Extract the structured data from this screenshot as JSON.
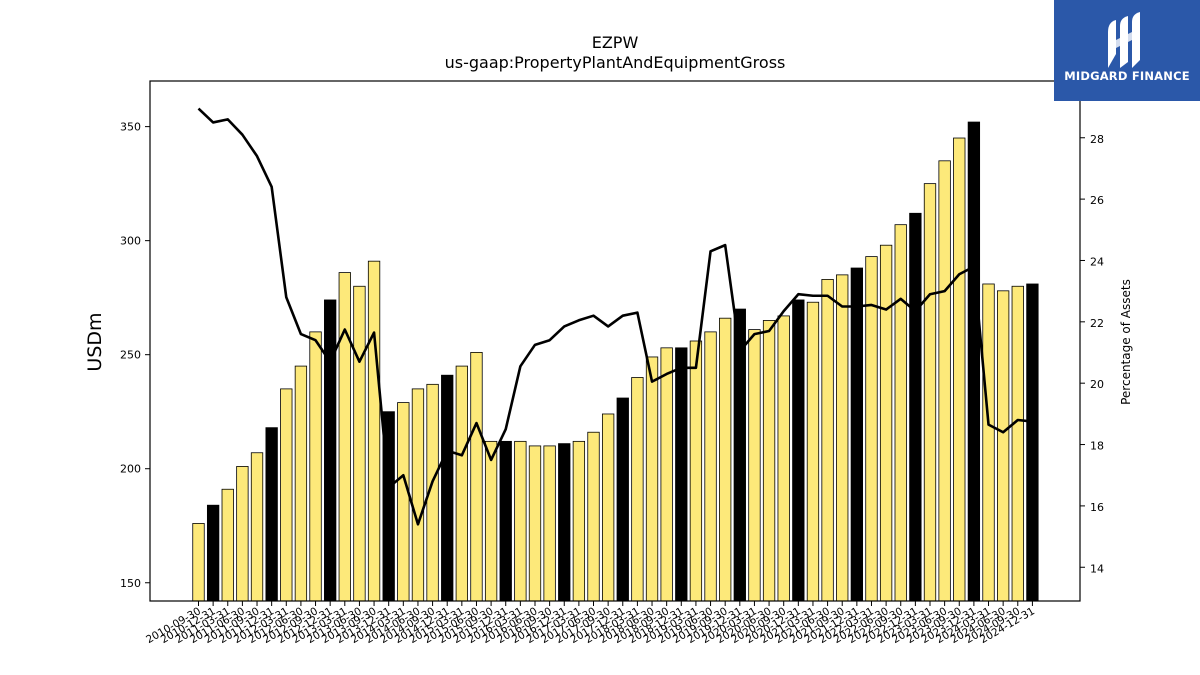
{
  "logo": {
    "text": "MIDGARD FINANCE"
  },
  "chart_data": {
    "type": "bar",
    "title": "EZPW",
    "subtitle": "us-gaap:PropertyPlantAndEquipmentGross",
    "ylabel": "USDm",
    "y2label": "Percentage of Assets",
    "ylim": [
      142,
      370
    ],
    "y2lim": [
      12.9,
      29.85
    ],
    "yticks": [
      150,
      200,
      250,
      300,
      350
    ],
    "y2ticks": [
      14,
      16,
      18,
      20,
      22,
      24,
      26,
      28
    ],
    "bar_fill": "#fde97a",
    "bar_fill_annual": "#000000",
    "line_color": "#000000",
    "categories": [
      "2010-09-30",
      "2010-12-31",
      "2011-03-31",
      "2011-06-30",
      "2011-09-30",
      "2011-12-31",
      "2012-03-31",
      "2012-06-30",
      "2012-09-30",
      "2012-12-31",
      "2013-03-31",
      "2013-06-30",
      "2013-09-30",
      "2013-12-31",
      "2014-03-31",
      "2014-06-30",
      "2014-09-30",
      "2014-12-31",
      "2015-03-31",
      "2015-06-30",
      "2015-09-30",
      "2015-12-31",
      "2016-03-31",
      "2016-06-30",
      "2016-09-30",
      "2016-12-31",
      "2017-03-31",
      "2017-06-30",
      "2017-09-30",
      "2017-12-31",
      "2018-03-31",
      "2018-06-30",
      "2018-09-30",
      "2018-12-31",
      "2019-03-31",
      "2019-06-30",
      "2019-09-30",
      "2019-12-31",
      "2020-03-31",
      "2020-06-30",
      "2020-09-30",
      "2020-12-31",
      "2021-03-31",
      "2021-06-30",
      "2021-09-30",
      "2021-12-31",
      "2022-03-31",
      "2022-06-30",
      "2022-09-30",
      "2022-12-31",
      "2023-03-31",
      "2023-06-30",
      "2023-09-30",
      "2023-12-31",
      "2024-03-31",
      "2024-06-30",
      "2024-09-30",
      "2024-12-31"
    ],
    "xtick_labels": [
      "2010-09-30",
      "2010-12-31",
      "2011-03-31",
      "2011-06-30",
      "2011-09-30",
      "2011-12-31",
      "2012-03-31",
      "2012-06-30",
      "2012-09-30",
      "2012-12-31",
      "2013-03-31",
      "2013-06-30",
      "2013-09-30",
      "2013-12-31",
      "2014-03-31",
      "2014-06-30",
      "2014-09-30",
      "2014-12-31",
      "2015-03-31",
      "2015-06-30",
      "2015-09-30",
      "2015-12-31",
      "2016-03-31",
      "2016-06-30",
      "2016-09-30",
      "2016-12-31",
      "2017-03-31",
      "2017-06-30",
      "2017-09-30",
      "2017-12-31",
      "2018-03-31",
      "2018-06-30",
      "2018-09-30",
      "2018-12-31",
      "2019-03-31",
      "2019-06-30",
      "2019-09-30",
      "2019-12-31",
      "2020-03-31",
      "2020-06-30",
      "2020-09-30",
      "2020-12-31",
      "2021-03-31",
      "2021-06-30",
      "2021-09-30",
      "2021-12-31",
      "2022-03-31",
      "2022-06-30",
      "2022-09-30",
      "2022-12-31",
      "2023-03-31",
      "2023-06-30",
      "2023-09-30",
      "2023-12-31",
      "2024-03-31",
      "2024-06-30",
      "2024-09-30",
      "2024-12-31"
    ],
    "annual_flags": [
      0,
      1,
      0,
      0,
      0,
      1,
      0,
      0,
      0,
      1,
      0,
      0,
      0,
      1,
      0,
      0,
      0,
      1,
      0,
      0,
      0,
      1,
      0,
      0,
      0,
      1,
      0,
      0,
      0,
      1,
      0,
      0,
      0,
      1,
      0,
      0,
      0,
      1,
      0,
      0,
      0,
      1,
      0,
      0,
      0,
      1,
      0,
      0,
      0,
      1,
      0,
      0,
      0,
      1,
      0,
      0,
      0,
      1
    ],
    "series": [
      {
        "type": "bar",
        "axis": "left",
        "values": [
          176,
          184,
          191,
          201,
          207,
          218,
          235,
          245,
          260,
          274,
          286,
          280,
          291,
          225,
          229,
          235,
          237,
          241,
          245,
          251,
          212,
          212,
          212,
          210,
          210,
          211,
          212,
          216,
          224,
          231,
          240,
          249,
          253,
          253,
          256,
          260,
          266,
          270,
          261,
          265,
          267,
          274,
          273,
          283,
          285,
          288,
          293,
          298,
          307,
          312,
          325,
          335,
          345,
          352,
          281,
          278,
          280,
          281
        ]
      },
      {
        "type": "line",
        "axis": "right",
        "values": [
          28.95,
          28.5,
          28.6,
          28.1,
          27.4,
          26.4,
          22.8,
          21.6,
          21.4,
          20.7,
          21.75,
          20.7,
          21.65,
          16.6,
          17.0,
          15.4,
          16.8,
          17.8,
          17.65,
          18.7,
          17.5,
          18.5,
          20.55,
          21.25,
          21.4,
          21.85,
          22.05,
          22.2,
          21.85,
          22.2,
          22.3,
          20.05,
          20.3,
          20.5,
          20.5,
          24.3,
          24.5,
          21.05,
          21.6,
          21.7,
          22.35,
          22.9,
          22.85,
          22.85,
          22.5,
          22.5,
          22.55,
          22.4,
          22.75,
          22.35,
          22.9,
          23.0,
          23.55,
          23.8,
          18.65,
          18.4,
          18.8,
          18.75
        ]
      }
    ],
    "grid": false,
    "legend": "none"
  }
}
